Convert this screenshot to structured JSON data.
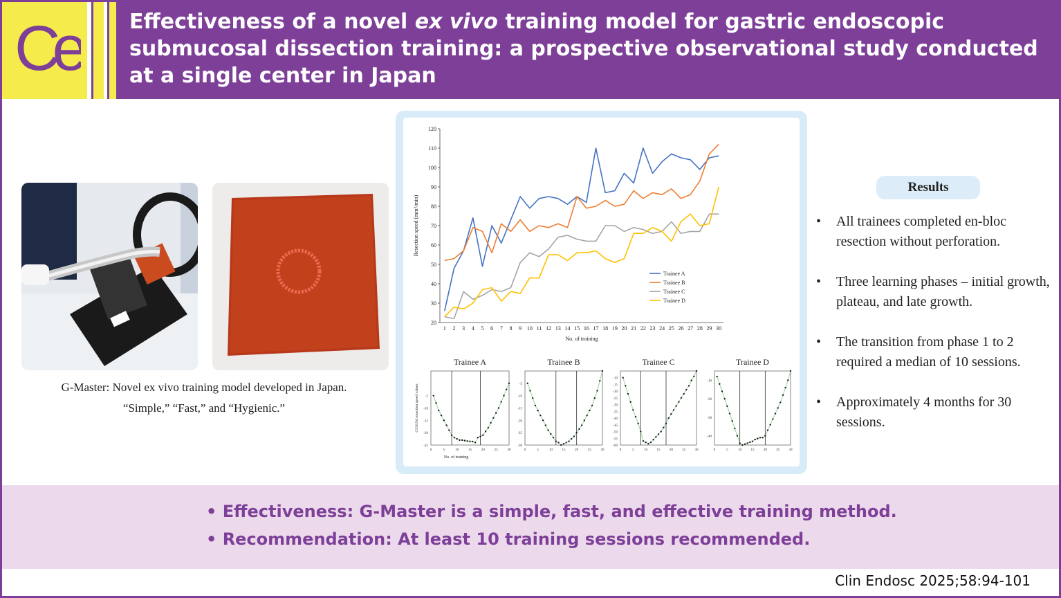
{
  "header": {
    "logo_text": "Ce",
    "title_part1": "Effectiveness of a novel ",
    "title_italic": "ex vivo",
    "title_part2": " training model for gastric endoscopic submucosal dissection training: a prospective observational study conducted at a single center in Japan"
  },
  "photos": {
    "caption_line1": "G-Master: Novel ex vivo training model developed in Japan.",
    "caption_line2": "“Simple,” “Fast,” and “Hygienic.”"
  },
  "chart_data": [
    {
      "type": "line",
      "ylabel": "Resection speed (mm²/min)",
      "xlabel": "No. of training",
      "x": [
        1,
        2,
        3,
        4,
        5,
        6,
        7,
        8,
        9,
        10,
        11,
        12,
        13,
        14,
        15,
        16,
        17,
        18,
        19,
        20,
        21,
        22,
        23,
        24,
        25,
        26,
        27,
        28,
        29,
        30
      ],
      "ylim": [
        20,
        120
      ],
      "yticks": [
        20,
        30,
        40,
        50,
        60,
        70,
        80,
        90,
        100,
        110,
        120
      ],
      "legend": "right",
      "series": [
        {
          "name": "Trainee A",
          "color": "#4472c4",
          "values": [
            26,
            48,
            57,
            74,
            49,
            70,
            61,
            73,
            85,
            79,
            84,
            85,
            84,
            81,
            85,
            82,
            110,
            87,
            88,
            97,
            92,
            110,
            97,
            103,
            107,
            105,
            104,
            99,
            105,
            106
          ]
        },
        {
          "name": "Trainee B",
          "color": "#ed7d31",
          "values": [
            52,
            53,
            57,
            69,
            67,
            56,
            71,
            67,
            73,
            67,
            70,
            69,
            71,
            69,
            85,
            79,
            80,
            83,
            80,
            81,
            88,
            84,
            87,
            86,
            89,
            84,
            86,
            93,
            107,
            112
          ]
        },
        {
          "name": "Trainee C",
          "color": "#a5a5a5",
          "values": [
            23,
            22,
            36,
            32,
            34,
            37,
            36,
            38,
            51,
            56,
            54,
            58,
            64,
            65,
            63,
            62,
            62,
            70,
            70,
            67,
            69,
            68,
            66,
            67,
            72,
            66,
            67,
            67,
            76,
            76
          ]
        },
        {
          "name": "Trainee D",
          "color": "#ffc000",
          "values": [
            23,
            28,
            27,
            30,
            37,
            38,
            31,
            36,
            35,
            43,
            43,
            55,
            55,
            52,
            56,
            56,
            57,
            53,
            51,
            53,
            66,
            66,
            69,
            67,
            62,
            72,
            76,
            70,
            71,
            90
          ]
        }
      ]
    },
    {
      "type": "scatter",
      "title": "Trainee A",
      "ylabel": "CUSUM resection speed values",
      "xlabel": "No. of training",
      "xlim": [
        0,
        30
      ],
      "ylim": [
        -25,
        5
      ],
      "xticks": [
        0,
        5,
        10,
        15,
        20,
        25,
        30
      ],
      "yticks": [
        -25,
        -20,
        -15,
        -10,
        -5
      ],
      "vlines": [
        8,
        19
      ],
      "x": [
        1,
        2,
        3,
        4,
        5,
        6,
        7,
        8,
        9,
        10,
        11,
        12,
        13,
        14,
        15,
        16,
        17,
        18,
        19,
        20,
        21,
        22,
        23,
        24,
        25,
        26,
        27,
        28,
        29,
        30
      ],
      "values": [
        -5,
        -8,
        -11,
        -13,
        -15,
        -17,
        -19,
        -21,
        -22,
        -22.5,
        -23,
        -23,
        -23.2,
        -23.4,
        -23.5,
        -23.6,
        -24,
        -22,
        -21.5,
        -21,
        -19.5,
        -18,
        -16,
        -14,
        -12,
        -10,
        -7.5,
        -5,
        -2.5,
        0
      ]
    },
    {
      "type": "scatter",
      "title": "Trainee B",
      "xlim": [
        0,
        30
      ],
      "ylim": [
        -30,
        0
      ],
      "xticks": [
        0,
        5,
        10,
        15,
        20,
        25,
        30
      ],
      "yticks": [
        -30,
        -25,
        -20,
        -15,
        -10,
        -5
      ],
      "vlines": [
        12,
        20
      ],
      "x": [
        1,
        2,
        3,
        4,
        5,
        6,
        7,
        8,
        9,
        10,
        11,
        12,
        13,
        14,
        15,
        16,
        17,
        18,
        19,
        20,
        21,
        22,
        23,
        24,
        25,
        26,
        27,
        28,
        29,
        30
      ],
      "values": [
        -5,
        -8,
        -11,
        -14,
        -16,
        -18,
        -20,
        -22,
        -24,
        -25.5,
        -27,
        -28.5,
        -29,
        -30,
        -29.5,
        -29,
        -28.5,
        -27.5,
        -26.5,
        -25,
        -23.5,
        -22,
        -20,
        -18,
        -16,
        -14,
        -11,
        -8,
        -4,
        0
      ]
    },
    {
      "type": "scatter",
      "title": "Trainee C",
      "xlim": [
        0,
        30
      ],
      "ylim": [
        -60,
        -5
      ],
      "xticks": [
        0,
        5,
        10,
        15,
        20,
        25,
        30
      ],
      "yticks": [
        -60,
        -55,
        -50,
        -45,
        -40,
        -35,
        -30,
        -25,
        -20,
        -15,
        -10
      ],
      "vlines": [
        8,
        18
      ],
      "x": [
        1,
        2,
        3,
        4,
        5,
        6,
        7,
        8,
        9,
        10,
        11,
        12,
        13,
        14,
        15,
        16,
        17,
        18,
        19,
        20,
        21,
        22,
        23,
        24,
        25,
        26,
        27,
        28,
        29,
        30
      ],
      "values": [
        -10,
        -16,
        -22,
        -28,
        -34,
        -39,
        -44,
        -50,
        -57,
        -58,
        -59,
        -58,
        -56,
        -54,
        -52,
        -50,
        -47,
        -44,
        -40,
        -37,
        -34,
        -31,
        -28,
        -25,
        -22,
        -19,
        -16,
        -12,
        -9,
        -5
      ]
    },
    {
      "type": "scatter",
      "title": "Trainee D",
      "xlim": [
        0,
        30
      ],
      "ylim": [
        -45,
        -5
      ],
      "xticks": [
        0,
        5,
        10,
        15,
        20,
        25,
        30
      ],
      "yticks": [
        -40,
        -30,
        -20,
        -10
      ],
      "vlines": [
        10,
        20
      ],
      "x": [
        1,
        2,
        3,
        4,
        5,
        6,
        7,
        8,
        9,
        10,
        11,
        12,
        13,
        14,
        15,
        16,
        17,
        18,
        19,
        20,
        21,
        22,
        23,
        24,
        25,
        26,
        27,
        28,
        29,
        30
      ],
      "values": [
        -8,
        -12,
        -16,
        -20,
        -24,
        -28,
        -32,
        -36,
        -40,
        -44,
        -45,
        -44.5,
        -44,
        -43.5,
        -43,
        -42,
        -41.5,
        -41,
        -41,
        -40,
        -37,
        -34,
        -31,
        -28,
        -25,
        -22,
        -18,
        -14,
        -10,
        -5
      ]
    }
  ],
  "results": {
    "heading": "Results",
    "items": [
      "All trainees completed en-bloc resection without perforation.",
      "Three learning phases – initial growth, plateau, and late growth.",
      "The transition from phase 1 to 2 required a median of 10 sessions.",
      "Approximately 4 months for 30 sessions."
    ]
  },
  "conclusions": [
    "• Effectiveness: G-Master is a simple, fast, and effective training method.",
    "• Recommendation: At least 10 training sessions recommended."
  ],
  "citation": "Clin Endosc 2025;58:94-101",
  "colors": {
    "header_purple": "#7d3f98",
    "logo_yellow": "#f5ec4b",
    "band_lavender": "#ecdaec",
    "figure_frame": "#d7ecf8"
  }
}
